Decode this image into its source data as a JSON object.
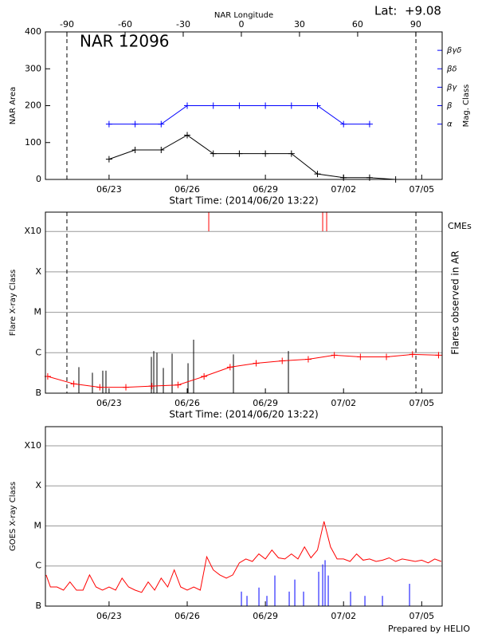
{
  "header": {
    "lat_label": "Lat:",
    "lat_value": "+9.08"
  },
  "footer": "Prepared by HELIO",
  "chart_data": [
    {
      "type": "line",
      "title": "NAR 12096",
      "ylabel": "NAR Area",
      "y2label": "Mag. Class",
      "x2label": "NAR Longitude",
      "xlabel": "Start Time: (2014/06/20 13:22)",
      "xlim": [
        "2014-06-20 13:22",
        "2014-07-05 18:50"
      ],
      "xticks": [
        {
          "value": "2014-06-23",
          "label": "06/23"
        },
        {
          "value": "2014-06-26",
          "label": "06/26"
        },
        {
          "value": "2014-06-29",
          "label": "06/29"
        },
        {
          "value": "2014-07-02",
          "label": "07/02"
        },
        {
          "value": "2014-07-05",
          "label": "07/05"
        }
      ],
      "x2lim": [
        -101.1,
        103.6
      ],
      "x2ticks": [
        -90,
        -60,
        -30,
        0,
        30,
        60,
        90
      ],
      "ylim": [
        0,
        400
      ],
      "yticks": [
        0,
        100,
        200,
        300,
        400
      ],
      "log": false,
      "grid": false,
      "y2lim": [
        0,
        400
      ],
      "y2color": "#0000ff",
      "y2ticks": [
        {
          "value": 150,
          "label": "α"
        },
        {
          "value": 200,
          "label": "β"
        },
        {
          "value": 250,
          "label": "βγ"
        },
        {
          "value": 300,
          "label": "βδ"
        },
        {
          "value": 350,
          "label": "βγδ"
        }
      ],
      "vlines": [
        "2014-06-21 09:10",
        "2014-07-04 18:40"
      ],
      "series": [
        {
          "color": "#000000",
          "marker": "+",
          "x": [
            "2014-06-23",
            "2014-06-24",
            "2014-06-25",
            "2014-06-26",
            "2014-06-27",
            "2014-06-28",
            "2014-06-29",
            "2014-06-30",
            "2014-07-01",
            "2014-07-02",
            "2014-07-03",
            "2014-07-04"
          ],
          "values": [
            55,
            80,
            80,
            120,
            70,
            70,
            70,
            70,
            15,
            5,
            5,
            0
          ]
        },
        {
          "color": "#0000ff",
          "marker": "+",
          "axis": "y2",
          "x": [
            "2014-06-23",
            "2014-06-24",
            "2014-06-25",
            "2014-06-26",
            "2014-06-27",
            "2014-06-28",
            "2014-06-29",
            "2014-06-30",
            "2014-07-01",
            "2014-07-02",
            "2014-07-03"
          ],
          "values": [
            150,
            150,
            150,
            200,
            200,
            200,
            200,
            200,
            200,
            150,
            150
          ]
        }
      ]
    },
    {
      "type": "line",
      "ylabel": "Flare X-ray Class",
      "y2label": "Flares observed in AR",
      "xlabel": "Start Time: (2014/06/20 13:22)",
      "xlim": [
        "2014-06-20 13:22",
        "2014-07-05 18:50"
      ],
      "xticks": [
        {
          "value": "2014-06-23",
          "label": "06/23"
        },
        {
          "value": "2014-06-26",
          "label": "06/26"
        },
        {
          "value": "2014-06-29",
          "label": "06/29"
        },
        {
          "value": "2014-07-02",
          "label": "07/02"
        },
        {
          "value": "2014-07-05",
          "label": "07/05"
        }
      ],
      "ylim": [
        1e-07,
        0.003
      ],
      "log": true,
      "grid": true,
      "yticks": [
        {
          "value": 1e-07,
          "label": "B"
        },
        {
          "value": 1e-06,
          "label": "C"
        },
        {
          "value": 1e-05,
          "label": "M"
        },
        {
          "value": 0.0001,
          "label": "X"
        },
        {
          "value": 0.001,
          "label": "X10"
        }
      ],
      "vlines": [
        "2014-06-21 09:10",
        "2014-07-04 18:40"
      ],
      "series": [
        {
          "color": "#ff0000",
          "marker": "+",
          "x": [
            "2014-06-20 15:30",
            "2014-06-21 15:30",
            "2014-06-22 15:30",
            "2014-06-23 15:30",
            "2014-06-24 15:30",
            "2014-06-25 15:30",
            "2014-06-26 15:30",
            "2014-06-27 15:30",
            "2014-06-28 15:30",
            "2014-06-29 15:30",
            "2014-06-30 15:30",
            "2014-07-01 15:30",
            "2014-07-02 15:30",
            "2014-07-03 15:30",
            "2014-07-04 15:30",
            "2014-07-05 15:30"
          ],
          "values": [
            2.6e-07,
            1.7e-07,
            1.4e-07,
            1.4e-07,
            1.5e-07,
            1.6e-07,
            2.6e-07,
            4.4e-07,
            5.5e-07,
            6.3e-07,
            6.9e-07,
            8.7e-07,
            7.9e-07,
            7.9e-07,
            9.1e-07,
            8.7e-07
          ]
        }
      ],
      "flares": {
        "color": "#000000",
        "x": [
          "2014-06-21 20:11",
          "2014-06-22 08:40",
          "2014-06-22 18:12",
          "2014-06-22 21:09",
          "2014-06-24 14:58",
          "2014-06-24 17:11",
          "2014-06-24 20:07",
          "2014-06-25 02:00",
          "2014-06-25 10:04",
          "2014-06-26 00:45",
          "2014-06-26 05:53",
          "2014-06-27 18:34",
          "2014-06-29 21:13"
        ],
        "values": [
          4.4e-07,
          3.2e-07,
          3.6e-07,
          3.6e-07,
          7.9e-07,
          1.1e-06,
          1e-06,
          4.2e-07,
          9.5e-07,
          5.5e-07,
          2.1e-06,
          9.1e-07,
          1.1e-06
        ]
      },
      "cmes": {
        "label": "CMEs",
        "color": "#ff0000",
        "x": [
          "2014-06-26 19:50",
          "2014-07-01 04:47",
          "2014-07-01 08:27"
        ]
      }
    },
    {
      "type": "line",
      "ylabel": "GOES X-ray Class",
      "xlim": [
        "2014-06-20 13:22",
        "2014-07-05 18:50"
      ],
      "xticks": [
        {
          "value": "2014-06-23",
          "label": "06/23"
        },
        {
          "value": "2014-06-26",
          "label": "06/26"
        },
        {
          "value": "2014-06-29",
          "label": "06/29"
        },
        {
          "value": "2014-07-02",
          "label": "07/02"
        },
        {
          "value": "2014-07-05",
          "label": "07/05"
        }
      ],
      "ylim": [
        1e-07,
        0.003
      ],
      "log": true,
      "grid": true,
      "yticks": [
        {
          "value": 1e-07,
          "label": "B"
        },
        {
          "value": 1e-06,
          "label": "C"
        },
        {
          "value": 1e-05,
          "label": "M"
        },
        {
          "value": 0.0001,
          "label": "X"
        },
        {
          "value": 0.001,
          "label": "X10"
        }
      ],
      "series": [
        {
          "color": "#ff0000",
          "x": [
            "2014-06-20 14:00",
            "2014-06-20 18:00",
            "2014-06-21 00:00",
            "2014-06-21 06:00",
            "2014-06-21 12:00",
            "2014-06-21 18:00",
            "2014-06-22 00:00",
            "2014-06-22 06:00",
            "2014-06-22 12:00",
            "2014-06-22 18:00",
            "2014-06-23 00:00",
            "2014-06-23 06:00",
            "2014-06-23 12:00",
            "2014-06-23 18:00",
            "2014-06-24 00:00",
            "2014-06-24 06:00",
            "2014-06-24 12:00",
            "2014-06-24 18:00",
            "2014-06-25 00:00",
            "2014-06-25 06:00",
            "2014-06-25 12:00",
            "2014-06-25 18:00",
            "2014-06-26 00:00",
            "2014-06-26 06:00",
            "2014-06-26 12:00",
            "2014-06-26 18:00",
            "2014-06-27 00:00",
            "2014-06-27 06:00",
            "2014-06-27 12:00",
            "2014-06-27 18:00",
            "2014-06-28 00:00",
            "2014-06-28 06:00",
            "2014-06-28 12:00",
            "2014-06-28 18:00",
            "2014-06-29 00:00",
            "2014-06-29 06:00",
            "2014-06-29 12:00",
            "2014-06-29 18:00",
            "2014-06-30 00:00",
            "2014-06-30 06:00",
            "2014-06-30 12:00",
            "2014-06-30 18:00",
            "2014-07-01 00:00",
            "2014-07-01 06:00",
            "2014-07-01 12:00",
            "2014-07-01 18:00",
            "2014-07-02 00:00",
            "2014-07-02 06:00",
            "2014-07-02 12:00",
            "2014-07-02 18:00",
            "2014-07-03 00:00",
            "2014-07-03 06:00",
            "2014-07-03 12:00",
            "2014-07-03 18:00",
            "2014-07-04 00:00",
            "2014-07-04 06:00",
            "2014-07-04 12:00",
            "2014-07-04 18:00",
            "2014-07-05 00:00",
            "2014-07-05 06:00",
            "2014-07-05 12:00",
            "2014-07-05 18:00"
          ],
          "values": [
            6e-07,
            3e-07,
            3e-07,
            2.5e-07,
            4e-07,
            2.5e-07,
            2.5e-07,
            6e-07,
            3e-07,
            2.5e-07,
            3e-07,
            2.5e-07,
            5e-07,
            3e-07,
            2.5e-07,
            2.2e-07,
            4e-07,
            2.5e-07,
            5e-07,
            3e-07,
            8e-07,
            3e-07,
            2.5e-07,
            3e-07,
            2.5e-07,
            1.7e-06,
            8e-07,
            6e-07,
            5e-07,
            6e-07,
            1.2e-06,
            1.5e-06,
            1.3e-06,
            2e-06,
            1.5e-06,
            2.5e-06,
            1.6e-06,
            1.5e-06,
            2e-06,
            1.5e-06,
            3e-06,
            1.6e-06,
            2.5e-06,
            1.3e-05,
            3e-06,
            1.5e-06,
            1.5e-06,
            1.3e-06,
            2e-06,
            1.4e-06,
            1.5e-06,
            1.3e-06,
            1.4e-06,
            1.6e-06,
            1.3e-06,
            1.5e-06,
            1.4e-06,
            1.3e-06,
            1.4e-06,
            1.2e-06,
            1.5e-06,
            1.3e-06
          ]
        }
      ],
      "flares": {
        "color": "#0000ff",
        "x": [
          "2014-06-28 01:55",
          "2014-06-28 07:03",
          "2014-06-28 18:04",
          "2014-06-29 01:24",
          "2014-06-29 08:44",
          "2014-06-29 21:57",
          "2014-06-30 03:06",
          "2014-06-30 11:10",
          "2014-07-01 01:06",
          "2014-07-01 04:47",
          "2014-07-01 06:59",
          "2014-07-01 09:55",
          "2014-07-02 06:28",
          "2014-07-02 19:41",
          "2014-07-03 11:50",
          "2014-07-04 12:47"
        ],
        "values": [
          2.3e-07,
          1.8e-07,
          2.9e-07,
          1.8e-07,
          5.8e-07,
          2.3e-07,
          4.6e-07,
          2.3e-07,
          7.2e-07,
          1.1e-06,
          1.4e-06,
          5.8e-07,
          2.3e-07,
          1.8e-07,
          1.8e-07,
          3.6e-07
        ]
      }
    }
  ]
}
